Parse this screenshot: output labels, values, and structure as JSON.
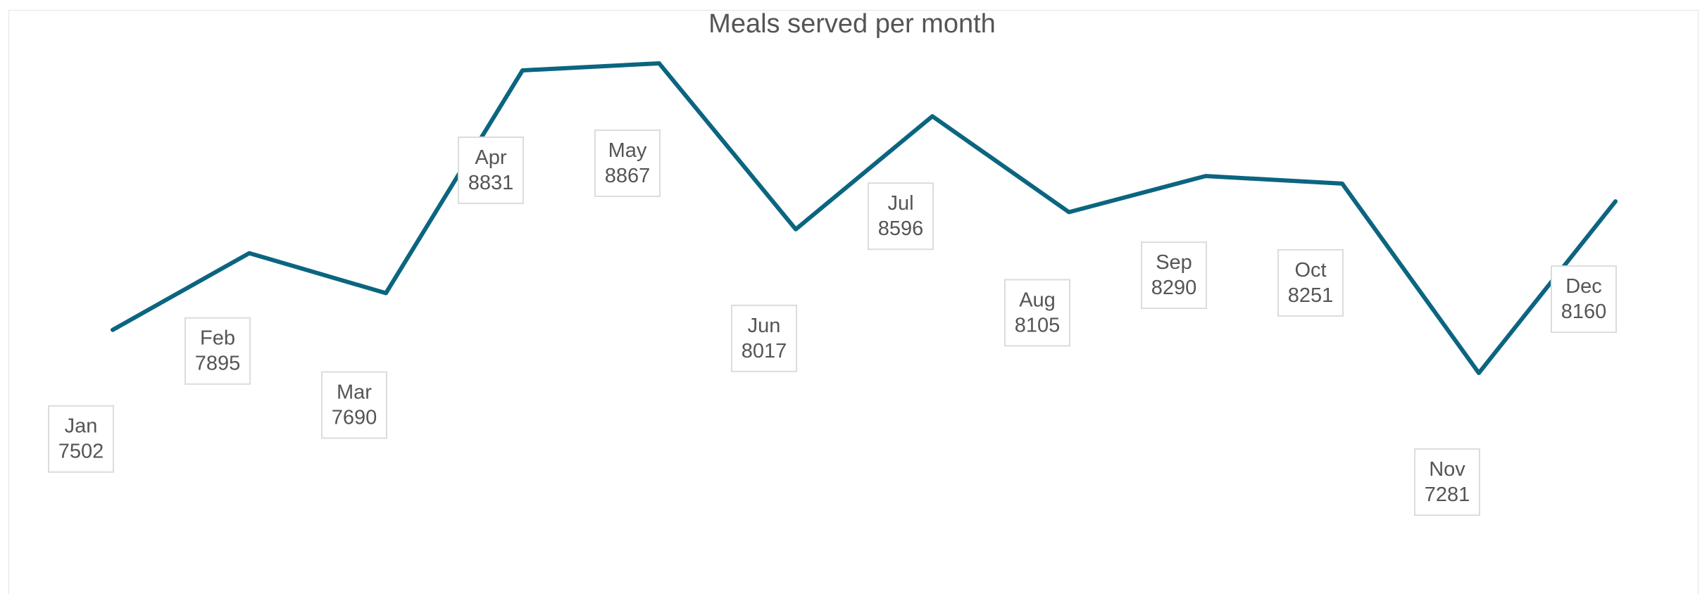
{
  "chart_data": {
    "type": "line",
    "title": "Meals served per month",
    "categories": [
      "Jan",
      "Feb",
      "Mar",
      "Apr",
      "May",
      "Jun",
      "Jul",
      "Aug",
      "Sep",
      "Oct",
      "Nov",
      "Dec"
    ],
    "values": [
      7502,
      7895,
      7690,
      8831,
      8867,
      8017,
      8596,
      8105,
      8290,
      8251,
      7281,
      8160
    ],
    "xlabel": "",
    "ylabel": "",
    "grid": false,
    "legend": "none",
    "line_color": "#0b6580"
  }
}
